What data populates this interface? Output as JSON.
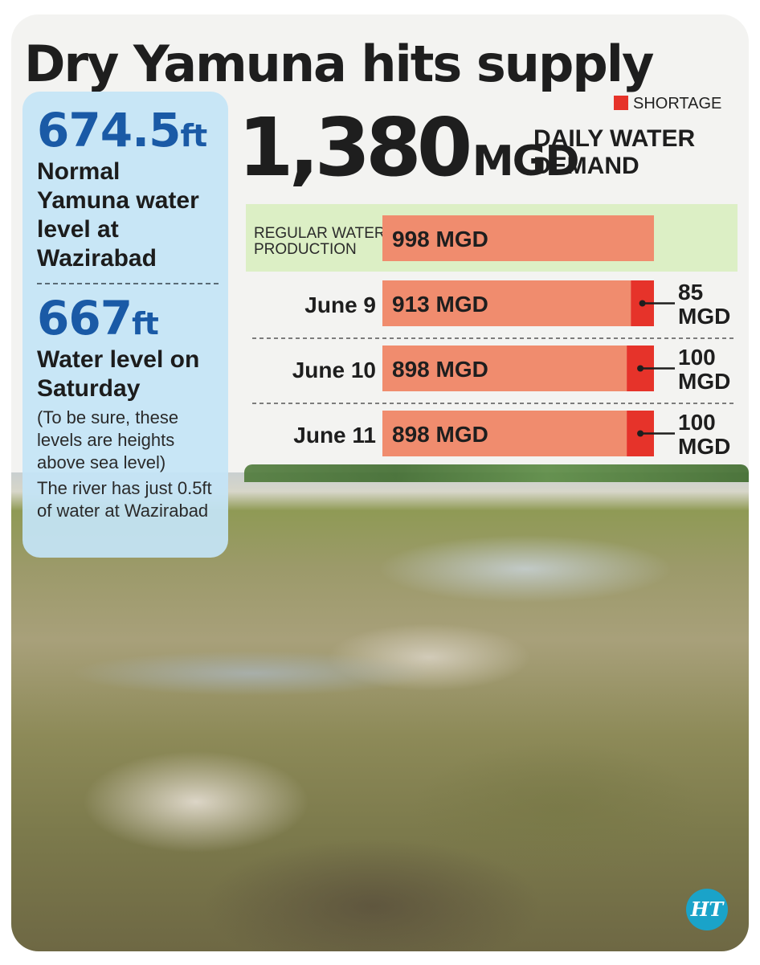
{
  "title": "Dry Yamuna hits supply",
  "info": {
    "normal_value": "674.5",
    "normal_unit": "ft",
    "normal_label": "Normal Yamuna water level at Wazirabad",
    "saturday_value": "667",
    "saturday_unit": "ft",
    "saturday_label": "Water level on Saturday",
    "note_sealevel": "(To be sure, these levels are heights above sea level)",
    "note_river": "The river has just 0.5ft of water at Wazirabad"
  },
  "demand": {
    "value": "1,380",
    "unit": "MGD",
    "label": "DAILY WATER DEMAND"
  },
  "legend": {
    "shortage_label": "SHORTAGE"
  },
  "logo": {
    "text": "HT"
  },
  "colors": {
    "production": "#f08c6e",
    "shortage": "#e6332a",
    "regular_bg": "#dcefc5",
    "accent_blue": "#1a5aa6"
  },
  "chart_data": {
    "type": "bar",
    "orientation": "horizontal",
    "stacked": true,
    "unit": "MGD",
    "categories": [
      "REGULAR WATER PRODUCTION",
      "June 9",
      "June 10",
      "June 11"
    ],
    "series": [
      {
        "values": [
          998,
          913,
          898,
          898
        ],
        "labels": [
          "998 MGD",
          "913 MGD",
          "898 MGD",
          "898 MGD"
        ]
      },
      {
        "name": "SHORTAGE",
        "values": [
          0,
          85,
          100,
          100
        ],
        "labels": [
          "",
          "85 MGD",
          "100 MGD",
          "100 MGD"
        ]
      }
    ],
    "xlim": [
      0,
      998
    ]
  }
}
